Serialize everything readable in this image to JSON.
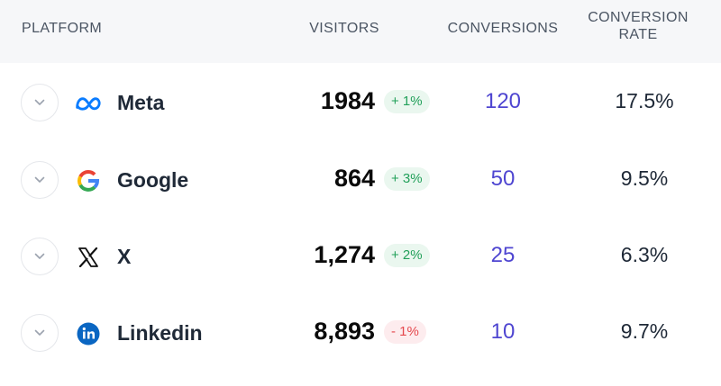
{
  "headers": {
    "platform": "PLATFORM",
    "visitors": "VISITORS",
    "conversions": "CONVERSIONS",
    "rate_line1": "CONVERSION",
    "rate_line2": "RATE"
  },
  "rows": [
    {
      "name": "Meta",
      "icon": "meta-icon",
      "visitors": "1984",
      "change": "+ 1%",
      "trend": "up",
      "conversions": "120",
      "rate": "17.5%"
    },
    {
      "name": "Google",
      "icon": "google-icon",
      "visitors": "864",
      "change": "+ 3%",
      "trend": "up",
      "conversions": "50",
      "rate": "9.5%"
    },
    {
      "name": "X",
      "icon": "x-icon",
      "visitors": "1,274",
      "change": "+ 2%",
      "trend": "up",
      "conversions": "25",
      "rate": "6.3%"
    },
    {
      "name": "Linkedin",
      "icon": "linkedin-icon",
      "visitors": "8,893",
      "change": "- 1%",
      "trend": "down",
      "conversions": "10",
      "rate": "9.7%"
    }
  ],
  "colors": {
    "positive": "#22a05a",
    "negative": "#e5484d",
    "conversions": "#4f46d1",
    "header_bg": "#f6f7f9"
  }
}
